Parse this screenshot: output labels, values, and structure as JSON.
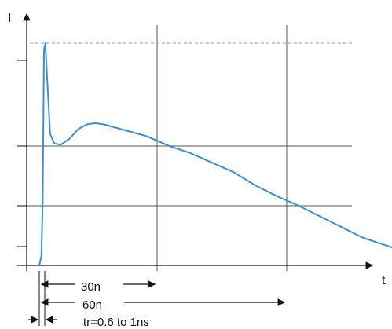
{
  "chart_data": {
    "type": "line",
    "title": "",
    "ylabel": "I",
    "xlabel": "t",
    "grid": true,
    "series": [
      {
        "points": [
          [
            0,
            0.0
          ],
          [
            0.5,
            0.04
          ],
          [
            0.8,
            0.28
          ],
          [
            1.1,
            0.9
          ],
          [
            1.4,
            0.93
          ],
          [
            2.5,
            0.55
          ],
          [
            3.5,
            0.51
          ],
          [
            5,
            0.505
          ],
          [
            7,
            0.53
          ],
          [
            9,
            0.57
          ],
          [
            11,
            0.59
          ],
          [
            13,
            0.595
          ],
          [
            15,
            0.59
          ],
          [
            20,
            0.565
          ],
          [
            25,
            0.54
          ],
          [
            30,
            0.5
          ],
          [
            35,
            0.47
          ],
          [
            40,
            0.43
          ],
          [
            45,
            0.39
          ],
          [
            50,
            0.335
          ],
          [
            55,
            0.29
          ],
          [
            60,
            0.25
          ],
          [
            65,
            0.205
          ],
          [
            70,
            0.16
          ],
          [
            75,
            0.115
          ],
          [
            80,
            0.085
          ],
          [
            86,
            0.05
          ]
        ]
      }
    ],
    "annotations": {
      "t30": "30n",
      "t60": "60n",
      "rise": "tr=0.6 to 1ns"
    },
    "colors": {
      "curve": "#3a8fd6",
      "grid": "#555555",
      "peak_line": "#999999"
    }
  }
}
